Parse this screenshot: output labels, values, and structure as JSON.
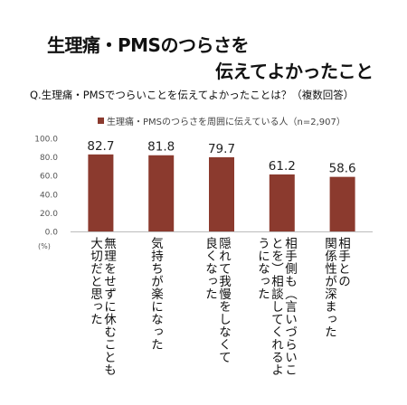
{
  "header": {
    "title_line1": "生理痛・PMSのつらさを",
    "title_line2": "伝えてよかったこと",
    "question": "Q.生理痛・PMSでつらいことを伝えてよかったことは？（複数回答）"
  },
  "chart_data": {
    "type": "bar",
    "categories": [
      "無理をせずに休むことも\n大切だと思った",
      "気持ちが楽になった",
      "隠れて我慢をしなくて\n良くなった",
      "相手側も（言いづらいこ\nとを）相談してくれるよ\nうになった",
      "相手との\n関係性が深まった"
    ],
    "series": [
      {
        "name": "生理痛・PMSのつらさを周囲に伝えている人（n=2,907）",
        "values": [
          82.7,
          81.8,
          79.7,
          61.2,
          58.6
        ]
      }
    ],
    "value_labels": [
      "82.7",
      "81.8",
      "79.7",
      "61.2",
      "58.6"
    ],
    "y_ticks": [
      "0.0",
      "20.0",
      "40.0",
      "60.0",
      "80.0",
      "100.0"
    ],
    "ylim": [
      0,
      100
    ],
    "unit_label": "(%)",
    "bar_color": "#8b3a2e",
    "legend_position": "top",
    "grid": false
  }
}
